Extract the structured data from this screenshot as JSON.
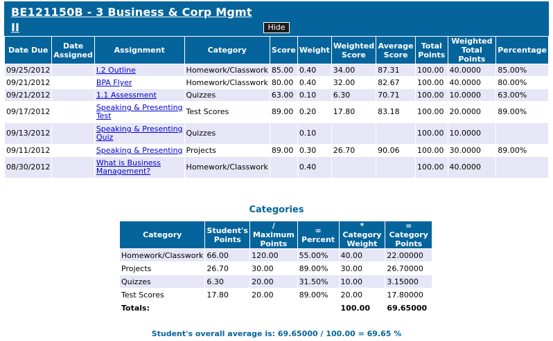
{
  "header": {
    "title_line1": "BE121150B - 3 Business & Corp Mgmt",
    "title_line2": "II",
    "hide_label": "Hide"
  },
  "grades": {
    "columns": [
      "Date Due",
      "Date Assigned",
      "Assignment",
      "Category",
      "Score",
      "Weight",
      "Weighted Score",
      "Average Score",
      "Total Points",
      "Weighted Total Points",
      "Percentage"
    ],
    "rows": [
      {
        "date_due": "09/25/2012",
        "date_assigned": "",
        "assignment": "I.2 Outline",
        "category": "Homework/Classwork",
        "score": "85.00",
        "weight": "0.40",
        "weighted_score": "34.00",
        "average_score": "87.31",
        "total_points": "100.00",
        "weighted_total_points": "40.0000",
        "percentage": "85.00%"
      },
      {
        "date_due": "09/21/2012",
        "date_assigned": "",
        "assignment": "BPA Flyer",
        "category": "Homework/Classwork",
        "score": "80.00",
        "weight": "0.40",
        "weighted_score": "32.00",
        "average_score": "82.67",
        "total_points": "100.00",
        "weighted_total_points": "40.0000",
        "percentage": "80.00%"
      },
      {
        "date_due": "09/21/2012",
        "date_assigned": "",
        "assignment": "1.1 Assessment",
        "category": "Quizzes",
        "score": "63.00",
        "weight": "0.10",
        "weighted_score": "6.30",
        "average_score": "70.71",
        "total_points": "100.00",
        "weighted_total_points": "10.0000",
        "percentage": "63.00%"
      },
      {
        "date_due": "09/17/2012",
        "date_assigned": "",
        "assignment": "Speaking & Presenting Test",
        "category": "Test Scores",
        "score": "89.00",
        "weight": "0.20",
        "weighted_score": "17.80",
        "average_score": "83.18",
        "total_points": "100.00",
        "weighted_total_points": "20.0000",
        "percentage": "89.00%"
      },
      {
        "date_due": "09/13/2012",
        "date_assigned": "",
        "assignment": "Speaking & Presenting Quiz",
        "category": "Quizzes",
        "score": "",
        "weight": "0.10",
        "weighted_score": "",
        "average_score": "",
        "total_points": "100.00",
        "weighted_total_points": "10.0000",
        "percentage": ""
      },
      {
        "date_due": "09/11/2012",
        "date_assigned": "",
        "assignment": "Speaking & Presenting",
        "category": "Projects",
        "score": "89.00",
        "weight": "0.30",
        "weighted_score": "26.70",
        "average_score": "90.06",
        "total_points": "100.00",
        "weighted_total_points": "30.0000",
        "percentage": "89.00%"
      },
      {
        "date_due": "08/30/2012",
        "date_assigned": "",
        "assignment": "What is Business Management?",
        "category": "Homework/Classwork",
        "score": "",
        "weight": "0.40",
        "weighted_score": "",
        "average_score": "",
        "total_points": "100.00",
        "weighted_total_points": "40.0000",
        "percentage": ""
      }
    ]
  },
  "categories": {
    "heading": "Categories",
    "columns": [
      "Category",
      "Student's Points",
      "/ Maximum Points",
      "= Percent",
      "* Category Weight",
      "= Category Points"
    ],
    "rows": [
      {
        "category": "Homework/Classwork",
        "student_points": "66.00",
        "maximum_points": "120.00",
        "percent": "55.00%",
        "category_weight": "40.00",
        "category_points": "22.00000"
      },
      {
        "category": "Projects",
        "student_points": "26.70",
        "maximum_points": "30.00",
        "percent": "89.00%",
        "category_weight": "30.00",
        "category_points": "26.70000"
      },
      {
        "category": "Quizzes",
        "student_points": "6.30",
        "maximum_points": "20.00",
        "percent": "31.50%",
        "category_weight": "10.00",
        "category_points": "3.15000"
      },
      {
        "category": "Test Scores",
        "student_points": "17.80",
        "maximum_points": "20.00",
        "percent": "89.00%",
        "category_weight": "20.00",
        "category_points": "17.80000"
      }
    ],
    "totals": {
      "label": "Totals:",
      "category_weight": "100.00",
      "category_points": "69.65000"
    }
  },
  "overall": {
    "text": "Student's overall average is: 69.65000 / 100.00 = 69.65 %"
  },
  "colors": {
    "header_bg": "#05649b",
    "row_alt": "#e6e6f7",
    "link": "#0000cc"
  }
}
